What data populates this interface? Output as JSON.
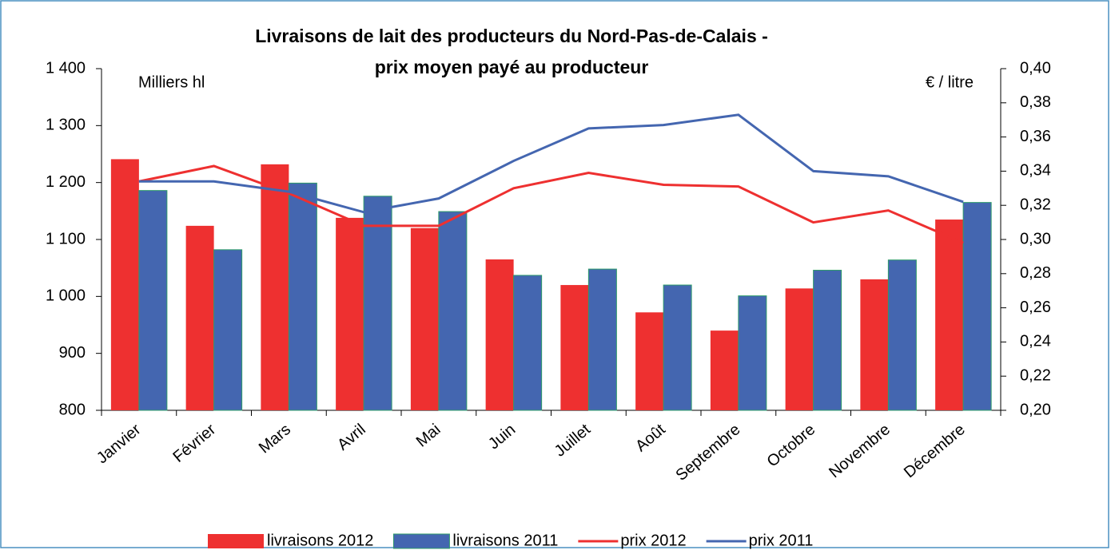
{
  "chart_data": {
    "type": "bar-line",
    "title_lines": [
      "Livraisons de lait des producteurs du Nord-Pas-de-Calais -",
      "prix moyen payé au producteur"
    ],
    "y_label": "Milliers hl",
    "y2_label": "€ / litre",
    "categories": [
      "Janvier",
      "Février",
      "Mars",
      "Avril",
      "Mai",
      "Juin",
      "Juillet",
      "Août",
      "Septembre",
      "Octobre",
      "Novembre",
      "Décembre"
    ],
    "series": [
      {
        "name": "livraisons 2012",
        "type": "bar",
        "color": "#ee3030",
        "values": [
          1241,
          1124,
          1232,
          1138,
          1120,
          1065,
          1020,
          972,
          940,
          1014,
          1030,
          1135
        ]
      },
      {
        "name": "livraisons 2011",
        "type": "bar",
        "color": "#4466b0",
        "values": [
          1186,
          1082,
          1199,
          1176,
          1149,
          1037,
          1048,
          1020,
          1001,
          1046,
          1064,
          1165
        ]
      },
      {
        "name": "prix 2012",
        "type": "line",
        "axis": "y2",
        "color": "#ee3030",
        "values": [
          0.334,
          0.343,
          0.327,
          0.308,
          0.308,
          0.33,
          0.339,
          0.332,
          0.331,
          0.31,
          0.317,
          0.298
        ]
      },
      {
        "name": "prix 2011",
        "type": "line",
        "axis": "y2",
        "color": "#4466b0",
        "values": [
          0.334,
          0.334,
          0.328,
          0.316,
          0.324,
          0.346,
          0.365,
          0.367,
          0.373,
          0.34,
          0.337,
          0.322
        ]
      }
    ],
    "ylim": [
      800,
      1400
    ],
    "yticks": [
      800,
      900,
      {
        "value": 1000,
        "label": "1 000"
      },
      {
        "value": 1100,
        "label": "1 100"
      },
      {
        "value": 1200,
        "label": "1 200"
      },
      {
        "value": 1300,
        "label": "1 300"
      },
      {
        "value": 1400,
        "label": "1 400"
      }
    ],
    "y2lim": [
      0.2,
      0.4
    ],
    "y2ticks": [
      {
        "value": 0.2,
        "label": "0,20"
      },
      {
        "value": 0.22,
        "label": "0,22"
      },
      {
        "value": 0.24,
        "label": "0,24"
      },
      {
        "value": 0.26,
        "label": "0,26"
      },
      {
        "value": 0.28,
        "label": "0,28"
      },
      {
        "value": 0.3,
        "label": "0,30"
      },
      {
        "value": 0.32,
        "label": "0,32"
      },
      {
        "value": 0.34,
        "label": "0,34"
      },
      {
        "value": 0.36,
        "label": "0,36"
      },
      {
        "value": 0.38,
        "label": "0,38"
      },
      {
        "value": 0.4,
        "label": "0,40"
      }
    ],
    "legend": "bottom"
  }
}
